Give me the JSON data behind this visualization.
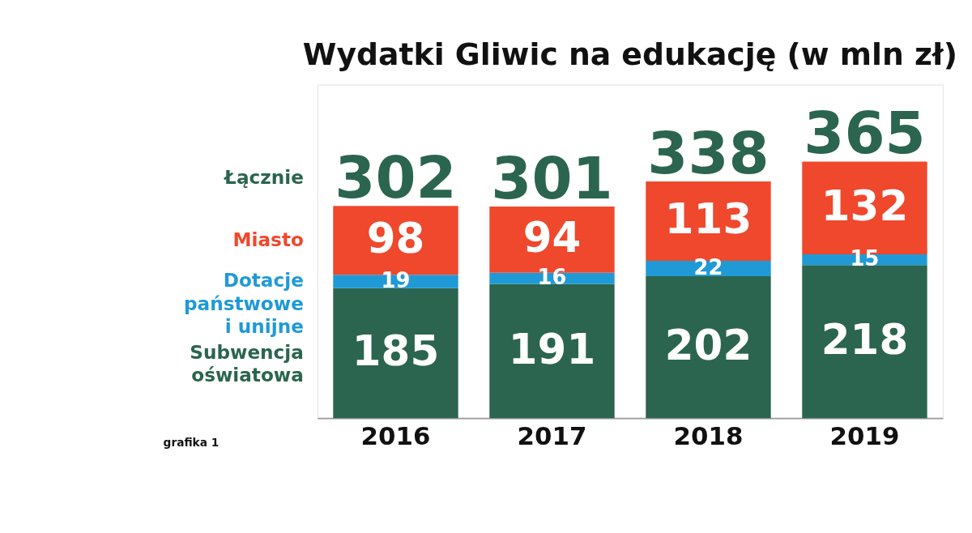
{
  "chart_data": {
    "type": "bar",
    "title": "Wydatki Gliwic na edukację (w mln zł)",
    "categories": [
      "2016",
      "2017",
      "2018",
      "2019"
    ],
    "stacked": true,
    "series": [
      {
        "name": "Subwencja oświatowa",
        "color": "#2b654f",
        "values": [
          185,
          191,
          202,
          218
        ]
      },
      {
        "name": "Dotacje państwowe i unijne",
        "color": "#1f9ad6",
        "values": [
          19,
          16,
          22,
          15
        ]
      },
      {
        "name": "Miasto",
        "color": "#ef482d",
        "values": [
          98,
          94,
          113,
          132
        ]
      }
    ],
    "totals": [
      "302",
      "301",
      "338",
      "365"
    ],
    "data_labels": true,
    "legend": "left",
    "annotations": [
      "Łącznie",
      "grafika 1"
    ]
  }
}
